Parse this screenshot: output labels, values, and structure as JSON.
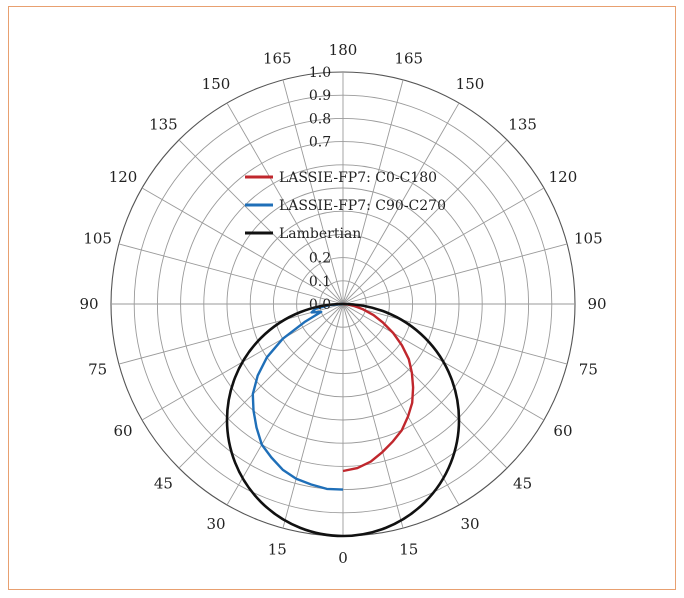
{
  "chart_data": {
    "type": "polar",
    "angle_ticks": [
      "0",
      "15",
      "30",
      "45",
      "60",
      "75",
      "90",
      "105",
      "120",
      "135",
      "150",
      "165",
      "180",
      "165",
      "150",
      "135",
      "120",
      "105",
      "90",
      "75",
      "60",
      "45",
      "30",
      "15"
    ],
    "radial_ticks": [
      "0.0",
      "0.1",
      "0.2",
      "0.7",
      "0.8",
      "0.9",
      "1.0"
    ],
    "rlim": [
      0,
      1.0
    ],
    "grid": true,
    "legend_position": "upper-left",
    "series": [
      {
        "name": "LASSIE-FP7: C0-C180",
        "color": "#c0272d",
        "angles": [
          0,
          5,
          10,
          15,
          20,
          25,
          30,
          35,
          40,
          45,
          50,
          55,
          60,
          65,
          70,
          75,
          80,
          85,
          90
        ],
        "values": [
          0.72,
          0.71,
          0.69,
          0.66,
          0.63,
          0.6,
          0.56,
          0.52,
          0.47,
          0.42,
          0.37,
          0.31,
          0.25,
          0.19,
          0.14,
          0.09,
          0.05,
          0.02,
          0.0
        ]
      },
      {
        "name": "LASSIE-FP7: C90-C270",
        "color": "#1f6fb8",
        "angles": [
          0,
          5,
          10,
          15,
          20,
          25,
          30,
          35,
          40,
          45,
          50,
          55,
          60,
          65,
          70,
          75,
          80,
          85,
          90
        ],
        "values": [
          0.8,
          0.8,
          0.79,
          0.78,
          0.76,
          0.73,
          0.7,
          0.65,
          0.6,
          0.55,
          0.48,
          0.4,
          0.3,
          0.18,
          0.1,
          0.14,
          0.12,
          0.06,
          0.0
        ]
      },
      {
        "name": "Lambertian",
        "color": "#111111",
        "function": "cos",
        "values": [
          1.0
        ]
      }
    ]
  }
}
